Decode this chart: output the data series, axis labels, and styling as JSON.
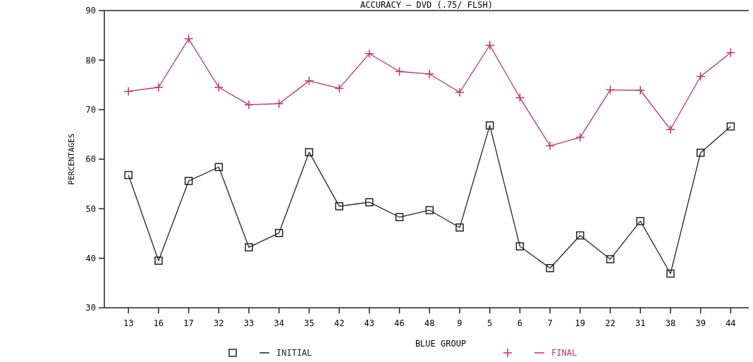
{
  "chart_data": {
    "type": "line",
    "title": "ACCURACY — DVD (.75/ FLSH)",
    "xlabel": "BLUE GROUP",
    "ylabel": "PERCENTAGES",
    "categories": [
      "13",
      "16",
      "17",
      "32",
      "33",
      "34",
      "35",
      "42",
      "43",
      "46",
      "48",
      "9",
      "5",
      "6",
      "7",
      "19",
      "22",
      "31",
      "38",
      "39",
      "44"
    ],
    "series": [
      {
        "name": "INITIAL",
        "color": "#222222",
        "marker": "square",
        "values": [
          56.8,
          39.5,
          55.6,
          58.4,
          42.2,
          45.1,
          61.4,
          50.5,
          51.3,
          48.3,
          49.7,
          46.2,
          66.8,
          42.4,
          38.0,
          44.6,
          39.8,
          47.5,
          36.9,
          61.3,
          66.6
        ]
      },
      {
        "name": "FINAL",
        "color": "#c8306a",
        "marker": "cross",
        "values": [
          73.7,
          74.5,
          84.3,
          74.5,
          71.0,
          71.2,
          75.8,
          74.3,
          81.3,
          77.7,
          77.2,
          73.5,
          83.0,
          72.4,
          62.7,
          64.4,
          74.0,
          73.9,
          66.0,
          76.7,
          81.5
        ]
      }
    ],
    "ylim": [
      30,
      90
    ],
    "yticks": [
      30,
      40,
      50,
      60,
      70,
      80,
      90
    ],
    "legend": "bottom",
    "grid": false
  }
}
